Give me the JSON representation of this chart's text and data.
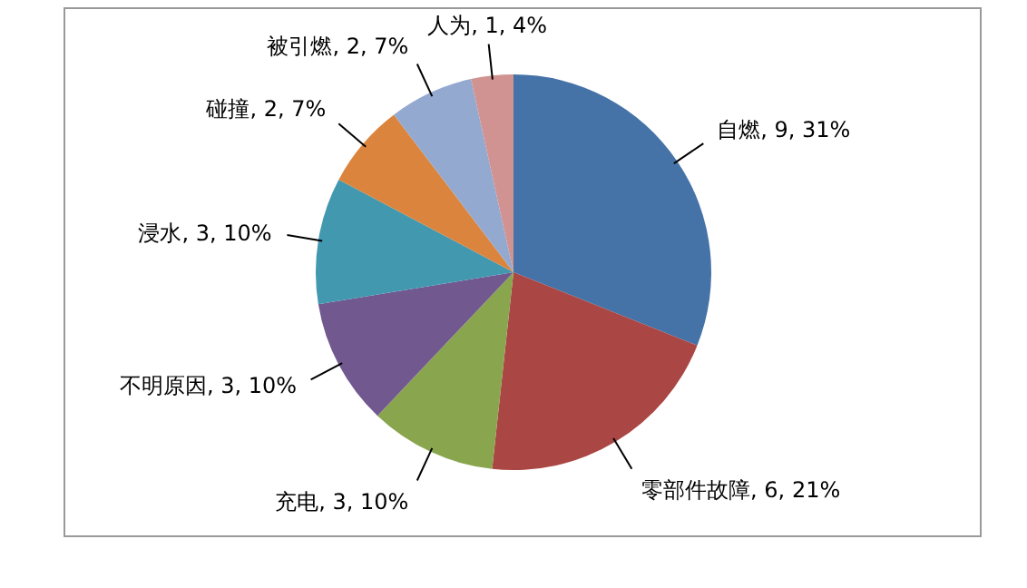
{
  "chart_data": {
    "type": "pie",
    "categories": [
      "自燃",
      "零部件故障",
      "充电",
      "不明原因",
      "浸水",
      "碰撞",
      "被引燃",
      "人为"
    ],
    "values": [
      9,
      6,
      3,
      3,
      3,
      2,
      2,
      1
    ],
    "value_labels": [
      "9, 31%",
      "6, 21%",
      "3, 10%",
      "3, 10%",
      "3, 10%",
      "2, 7%",
      "2, 7%",
      "1, 4%"
    ],
    "colors": [
      "#4572a7",
      "#aa4643",
      "#89a54e",
      "#71588f",
      "#4198af",
      "#db843d",
      "#93a9cf",
      "#d19392"
    ]
  }
}
